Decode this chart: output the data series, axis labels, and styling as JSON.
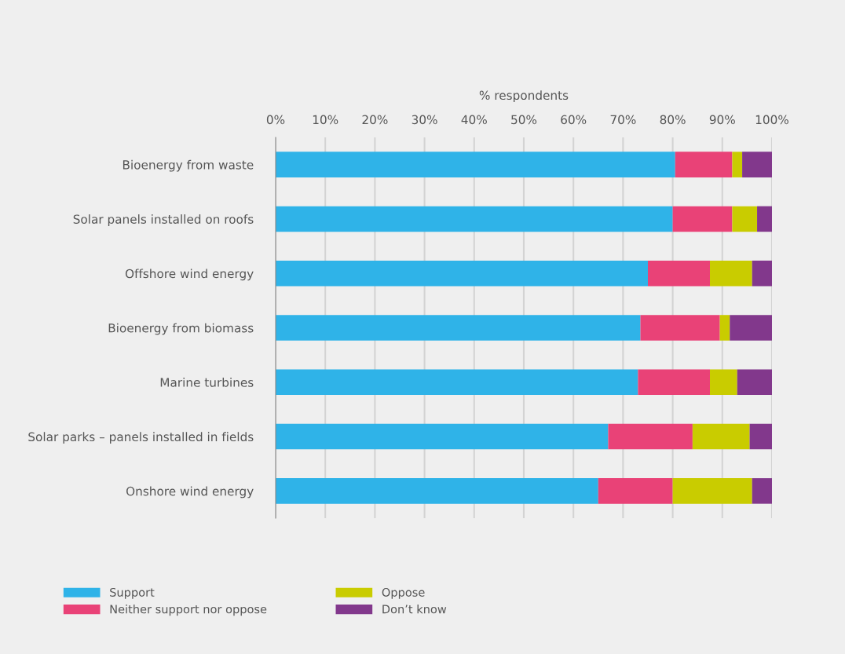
{
  "chart_data": {
    "type": "bar",
    "orientation": "horizontal",
    "stacked": true,
    "xlabel": "% respondents",
    "categories": [
      "Bioenergy from waste",
      "Solar panels installed on roofs",
      "Offshore wind energy",
      "Bioenergy from biomass",
      "Marine turbines",
      "Solar parks – panels installed in fields",
      "Onshore wind energy"
    ],
    "series": [
      {
        "name": "Support",
        "color": "#2fb3e8",
        "values": [
          80.5,
          80,
          75,
          73.5,
          73,
          67,
          65
        ]
      },
      {
        "name": "Neither support nor oppose",
        "color": "#e94277",
        "values": [
          11.5,
          12,
          12.5,
          16,
          14.5,
          17,
          15
        ]
      },
      {
        "name": "Oppose",
        "color": "#c9cc00",
        "values": [
          2,
          5,
          8.5,
          2,
          5.5,
          11.5,
          16
        ]
      },
      {
        "name": "Don’t know",
        "color": "#82388c",
        "values": [
          6,
          3,
          4,
          8.5,
          7,
          4.5,
          4
        ]
      }
    ],
    "xlim": [
      0,
      100
    ],
    "xticks": [
      {
        "value": 0,
        "label": "0%"
      },
      {
        "value": 10,
        "label": "10%"
      },
      {
        "value": 20,
        "label": "20%"
      },
      {
        "value": 30,
        "label": "30%"
      },
      {
        "value": 40,
        "label": "40%"
      },
      {
        "value": 50,
        "label": "50%"
      },
      {
        "value": 60,
        "label": "60%"
      },
      {
        "value": 70,
        "label": "70%"
      },
      {
        "value": 80,
        "label": "80%"
      },
      {
        "value": 90,
        "label": "90%"
      },
      {
        "value": 100,
        "label": "100%"
      }
    ],
    "grid": "x",
    "legend": "bottom left"
  }
}
